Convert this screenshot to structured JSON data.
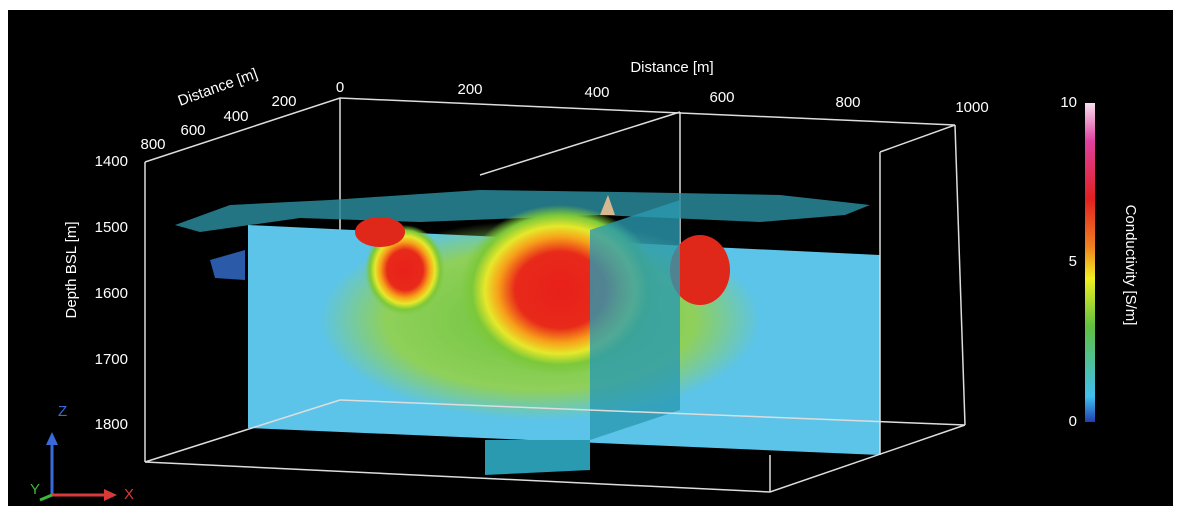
{
  "distance_top": {
    "label": "Distance [m]",
    "ticks": [
      "0",
      "200",
      "400",
      "600",
      "800",
      "1000"
    ]
  },
  "distance_side": {
    "label": "Distance [m]",
    "ticks": [
      "200",
      "400",
      "600",
      "800"
    ]
  },
  "depth": {
    "label": "Depth BSL [m]",
    "ticks": [
      "1400",
      "1500",
      "1600",
      "1700",
      "1800"
    ]
  },
  "colorbar": {
    "label": "Conductivity [S/m]",
    "ticks": [
      "10",
      "5",
      "0"
    ]
  },
  "triad": {
    "z": "Z",
    "y": "Y",
    "x": "X"
  }
}
